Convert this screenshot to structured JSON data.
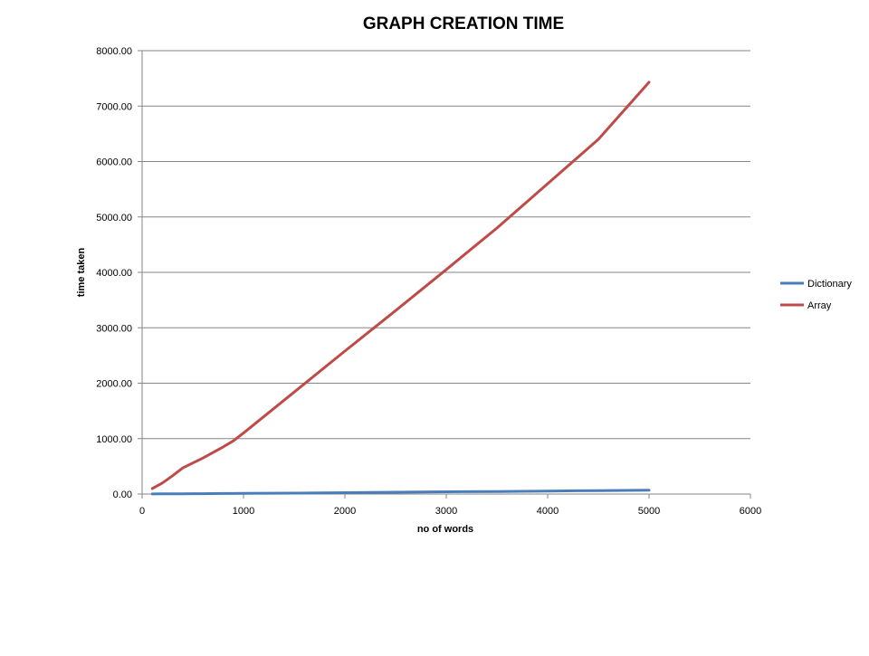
{
  "chart_data": {
    "type": "line",
    "title": "GRAPH CREATION TIME",
    "xlabel": "no of words",
    "ylabel": "time taken",
    "xlim": [
      0,
      6000
    ],
    "ylim": [
      0,
      8000
    ],
    "x_ticks": [
      0,
      1000,
      2000,
      3000,
      4000,
      5000,
      6000
    ],
    "y_ticks": [
      0,
      1000,
      2000,
      3000,
      4000,
      5000,
      6000,
      7000,
      8000
    ],
    "y_tick_labels": [
      "0.00",
      "1000.00",
      "2000.00",
      "3000.00",
      "4000.00",
      "5000.00",
      "6000.00",
      "7000.00",
      "8000.00"
    ],
    "grid": "horizontal",
    "legend": "right",
    "series": [
      {
        "name": "Dictionary",
        "color": "#4a7ebb",
        "x": [
          100,
          200,
          300,
          400,
          500,
          600,
          700,
          800,
          900,
          1000,
          1500,
          2000,
          2500,
          3000,
          3500,
          4000,
          4500,
          5000
        ],
        "y": [
          2,
          3,
          4,
          5,
          6,
          7,
          8,
          9,
          10,
          11,
          17,
          25,
          32,
          40,
          46,
          54,
          62,
          70
        ]
      },
      {
        "name": "Array",
        "color": "#be4b48",
        "x": [
          100,
          200,
          300,
          400,
          500,
          600,
          700,
          800,
          900,
          1000,
          1500,
          2000,
          2500,
          3000,
          3500,
          4000,
          4500,
          5000
        ],
        "y": [
          100,
          200,
          330,
          470,
          560,
          650,
          750,
          850,
          960,
          1100,
          1840,
          2580,
          3310,
          4050,
          4800,
          5600,
          6400,
          7430
        ]
      }
    ]
  }
}
